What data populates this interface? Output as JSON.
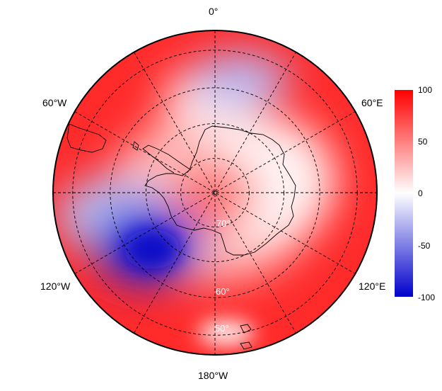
{
  "map": {
    "projection": "south polar stereographic",
    "latitude_circles": [
      50,
      60,
      70,
      80
    ],
    "longitude_lines": [
      0,
      30,
      60,
      90,
      120,
      150,
      180
    ],
    "longitude_labels": {
      "lon0": "0°",
      "lon60w": "60°W",
      "lon60e": "60°E",
      "lon120w": "120°W",
      "lon120e": "120°E",
      "lon180": "180°W"
    },
    "latitude_labels": {
      "lat70": "70°",
      "lat60": "60°",
      "lat50": "50°"
    },
    "gridline_style": "dashed black"
  },
  "colorbar": {
    "min": -100,
    "max": 100,
    "ticks": [
      "100",
      "50",
      "0",
      "-50",
      "-100"
    ],
    "colors": {
      "high": "#ff0000",
      "mid": "#ffffff",
      "low": "#0000cc"
    }
  },
  "field_features": [
    {
      "kind": "negative anomaly",
      "location": "Amundsen/Bellingshausen Sea, ~120°W 60°S",
      "value": -100
    },
    {
      "kind": "negative anomaly",
      "location": "South Atlantic, ~15°E 50°S",
      "value": -40
    },
    {
      "kind": "positive anomaly",
      "location": "rim around 45°S, strongest near 150°E–180°",
      "value": 100
    },
    {
      "kind": "positive anomaly",
      "location": "over the pole",
      "value": 40
    }
  ]
}
